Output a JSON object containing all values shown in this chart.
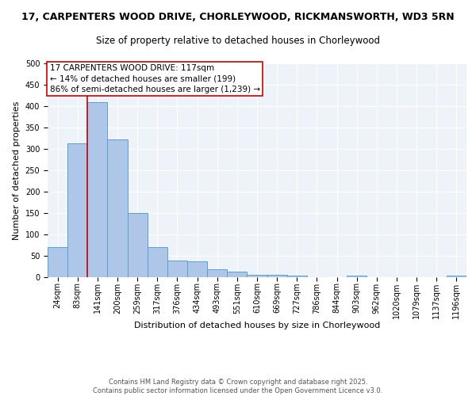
{
  "title_line1": "17, CARPENTERS WOOD DRIVE, CHORLEYWOOD, RICKMANSWORTH, WD3 5RN",
  "title_line2": "Size of property relative to detached houses in Chorleywood",
  "xlabel": "Distribution of detached houses by size in Chorleywood",
  "ylabel": "Number of detached properties",
  "categories": [
    "24sqm",
    "83sqm",
    "141sqm",
    "200sqm",
    "259sqm",
    "317sqm",
    "376sqm",
    "434sqm",
    "493sqm",
    "551sqm",
    "610sqm",
    "669sqm",
    "727sqm",
    "786sqm",
    "844sqm",
    "903sqm",
    "962sqm",
    "1020sqm",
    "1079sqm",
    "1137sqm",
    "1196sqm"
  ],
  "values": [
    71,
    313,
    410,
    323,
    150,
    70,
    38,
    37,
    18,
    13,
    6,
    6,
    4,
    0,
    0,
    3,
    0,
    0,
    0,
    0,
    3
  ],
  "bar_color": "#aec6e8",
  "bar_edge_color": "#5a9fd4",
  "vline_x": 1.5,
  "vline_color": "#cc0000",
  "annotation_text": "17 CARPENTERS WOOD DRIVE: 117sqm\n← 14% of detached houses are smaller (199)\n86% of semi-detached houses are larger (1,239) →",
  "annotation_box_color": "#ffffff",
  "annotation_box_edgecolor": "#cc0000",
  "ylim": [
    0,
    500
  ],
  "yticks": [
    0,
    50,
    100,
    150,
    200,
    250,
    300,
    350,
    400,
    450,
    500
  ],
  "bg_color": "#eef2f9",
  "grid_color": "#ffffff",
  "footer_text": "Contains HM Land Registry data © Crown copyright and database right 2025.\nContains public sector information licensed under the Open Government Licence v3.0.",
  "title_fontsize": 9,
  "subtitle_fontsize": 8.5,
  "axis_label_fontsize": 8,
  "tick_fontsize": 7,
  "annotation_fontsize": 7.5,
  "footer_fontsize": 6
}
